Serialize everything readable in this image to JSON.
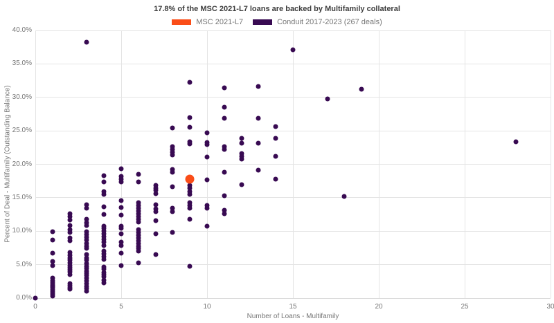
{
  "title": "17.8% of the MSC 2021-L7 loans are backed by Multifamily collateral",
  "legend": {
    "items": [
      {
        "label": "MSC 2021-L7",
        "color": "#fa4d18"
      },
      {
        "label": "Conduit 2017-2023 (267 deals)",
        "color": "#380a52"
      }
    ]
  },
  "colors": {
    "highlight": "#fa4d18",
    "conduit": "#380a52",
    "gridline": "#e4e4e4",
    "title_text": "#3d3d3d",
    "axis_text": "#757575"
  },
  "chart_data": {
    "type": "scatter",
    "title": "17.8% of the MSC 2021-L7 loans are backed by Multifamily collateral",
    "xlabel": "Number of Loans - Multifamily",
    "ylabel": "Percent of Deal - Multifamily (Outstanding Balance)",
    "xlim": [
      0,
      30
    ],
    "ylim": [
      0,
      40
    ],
    "x_ticks": [
      0,
      5,
      10,
      15,
      20,
      25,
      30
    ],
    "y_ticks": [
      0,
      5,
      10,
      15,
      20,
      25,
      30,
      35,
      40
    ],
    "y_tick_suffix": ".0%",
    "grid": true,
    "legend_position": "top-center",
    "series": [
      {
        "name": "Conduit 2017-2023 (267 deals)",
        "color": "#380a52",
        "marker_size": 7,
        "points": [
          [
            0,
            0.0
          ],
          [
            1,
            9.9
          ],
          [
            1,
            8.7
          ],
          [
            1,
            6.7
          ],
          [
            1,
            5.5
          ],
          [
            1,
            4.9
          ],
          [
            1,
            3.0
          ],
          [
            1,
            2.6
          ],
          [
            1,
            2.3
          ],
          [
            1,
            2.0
          ],
          [
            1,
            1.8
          ],
          [
            1,
            1.5
          ],
          [
            1,
            1.2
          ],
          [
            1,
            0.9
          ],
          [
            1,
            0.6
          ],
          [
            1,
            0.3
          ],
          [
            2,
            12.6
          ],
          [
            2,
            12.2
          ],
          [
            2,
            11.7
          ],
          [
            2,
            10.9
          ],
          [
            2,
            10.2
          ],
          [
            2,
            9.8
          ],
          [
            2,
            9.0
          ],
          [
            2,
            8.6
          ],
          [
            2,
            6.8
          ],
          [
            2,
            6.4
          ],
          [
            2,
            6.0
          ],
          [
            2,
            5.7
          ],
          [
            2,
            5.3
          ],
          [
            2,
            4.9
          ],
          [
            2,
            4.5
          ],
          [
            2,
            4.2
          ],
          [
            2,
            3.9
          ],
          [
            2,
            3.5
          ],
          [
            2,
            2.2
          ],
          [
            2,
            1.9
          ],
          [
            2,
            1.6
          ],
          [
            2,
            1.3
          ],
          [
            3,
            38.2
          ],
          [
            3,
            14.0
          ],
          [
            3,
            13.4
          ],
          [
            3,
            11.8
          ],
          [
            3,
            11.3
          ],
          [
            3,
            10.9
          ],
          [
            3,
            9.9
          ],
          [
            3,
            9.5
          ],
          [
            3,
            9.1
          ],
          [
            3,
            8.7
          ],
          [
            3,
            8.2
          ],
          [
            3,
            7.8
          ],
          [
            3,
            7.4
          ],
          [
            3,
            6.5
          ],
          [
            3,
            6.0
          ],
          [
            3,
            5.7
          ],
          [
            3,
            5.2
          ],
          [
            3,
            4.8
          ],
          [
            3,
            4.4
          ],
          [
            3,
            4.0
          ],
          [
            3,
            3.7
          ],
          [
            3,
            3.4
          ],
          [
            3,
            3.0
          ],
          [
            3,
            2.6
          ],
          [
            3,
            2.2
          ],
          [
            3,
            1.8
          ],
          [
            3,
            1.4
          ],
          [
            3,
            1.0
          ],
          [
            4,
            18.3
          ],
          [
            4,
            17.4
          ],
          [
            4,
            15.9
          ],
          [
            4,
            15.5
          ],
          [
            4,
            13.6
          ],
          [
            4,
            12.5
          ],
          [
            4,
            10.8
          ],
          [
            4,
            10.4
          ],
          [
            4,
            10.0
          ],
          [
            4,
            9.6
          ],
          [
            4,
            9.2
          ],
          [
            4,
            8.8
          ],
          [
            4,
            8.4
          ],
          [
            4,
            7.9
          ],
          [
            4,
            7.0
          ],
          [
            4,
            6.6
          ],
          [
            4,
            6.2
          ],
          [
            4,
            5.8
          ],
          [
            4,
            4.7
          ],
          [
            4,
            4.3
          ],
          [
            4,
            3.8
          ],
          [
            4,
            3.5
          ],
          [
            4,
            3.2
          ],
          [
            4,
            2.7
          ],
          [
            4,
            2.3
          ],
          [
            5,
            19.3
          ],
          [
            5,
            18.2
          ],
          [
            5,
            17.8
          ],
          [
            5,
            17.4
          ],
          [
            5,
            14.6
          ],
          [
            5,
            13.5
          ],
          [
            5,
            12.4
          ],
          [
            5,
            10.8
          ],
          [
            5,
            10.4
          ],
          [
            5,
            9.6
          ],
          [
            5,
            8.4
          ],
          [
            5,
            7.9
          ],
          [
            5,
            6.7
          ],
          [
            5,
            4.9
          ],
          [
            6,
            18.5
          ],
          [
            6,
            17.4
          ],
          [
            6,
            14.3
          ],
          [
            6,
            13.9
          ],
          [
            6,
            13.4
          ],
          [
            6,
            13.0
          ],
          [
            6,
            12.6
          ],
          [
            6,
            12.2
          ],
          [
            6,
            11.8
          ],
          [
            6,
            11.4
          ],
          [
            6,
            10.2
          ],
          [
            6,
            9.8
          ],
          [
            6,
            9.4
          ],
          [
            6,
            9.0
          ],
          [
            6,
            8.6
          ],
          [
            6,
            8.2
          ],
          [
            6,
            7.8
          ],
          [
            6,
            7.4
          ],
          [
            6,
            7.0
          ],
          [
            6,
            5.3
          ],
          [
            7,
            16.8
          ],
          [
            7,
            16.4
          ],
          [
            7,
            16.1
          ],
          [
            7,
            15.6
          ],
          [
            7,
            14.0
          ],
          [
            7,
            13.3
          ],
          [
            7,
            12.9
          ],
          [
            7,
            11.6
          ],
          [
            7,
            9.6
          ],
          [
            7,
            6.5
          ],
          [
            8,
            25.4
          ],
          [
            8,
            22.6
          ],
          [
            8,
            22.2
          ],
          [
            8,
            21.8
          ],
          [
            8,
            21.4
          ],
          [
            8,
            19.2
          ],
          [
            8,
            18.8
          ],
          [
            8,
            16.6
          ],
          [
            8,
            13.4
          ],
          [
            8,
            12.9
          ],
          [
            8,
            9.8
          ],
          [
            9,
            32.2
          ],
          [
            9,
            27.0
          ],
          [
            9,
            25.5
          ],
          [
            9,
            23.4
          ],
          [
            9,
            23.0
          ],
          [
            9,
            16.8
          ],
          [
            9,
            16.4
          ],
          [
            9,
            15.9
          ],
          [
            9,
            15.5
          ],
          [
            9,
            14.3
          ],
          [
            9,
            13.9
          ],
          [
            9,
            13.4
          ],
          [
            9,
            11.8
          ],
          [
            9,
            4.8
          ],
          [
            10,
            24.7
          ],
          [
            10,
            23.3
          ],
          [
            10,
            22.9
          ],
          [
            10,
            21.1
          ],
          [
            10,
            17.7
          ],
          [
            10,
            13.9
          ],
          [
            10,
            13.4
          ],
          [
            10,
            10.8
          ],
          [
            11,
            31.4
          ],
          [
            11,
            28.5
          ],
          [
            11,
            26.9
          ],
          [
            11,
            22.6
          ],
          [
            11,
            22.2
          ],
          [
            11,
            18.8
          ],
          [
            11,
            15.3
          ],
          [
            11,
            13.1
          ],
          [
            11,
            12.6
          ],
          [
            12,
            23.9
          ],
          [
            12,
            23.2
          ],
          [
            12,
            21.6
          ],
          [
            12,
            21.2
          ],
          [
            12,
            20.8
          ],
          [
            12,
            16.9
          ],
          [
            13,
            31.6
          ],
          [
            13,
            26.9
          ],
          [
            13,
            23.2
          ],
          [
            13,
            19.1
          ],
          [
            14,
            25.6
          ],
          [
            14,
            23.9
          ],
          [
            14,
            21.2
          ],
          [
            14,
            17.8
          ],
          [
            15,
            37.1
          ],
          [
            17,
            29.8
          ],
          [
            18,
            15.2
          ],
          [
            19,
            31.2
          ],
          [
            28,
            23.4
          ]
        ]
      },
      {
        "name": "MSC 2021-L7",
        "color": "#fa4d18",
        "marker_size": 13,
        "points": [
          [
            9,
            17.8
          ]
        ]
      }
    ]
  }
}
